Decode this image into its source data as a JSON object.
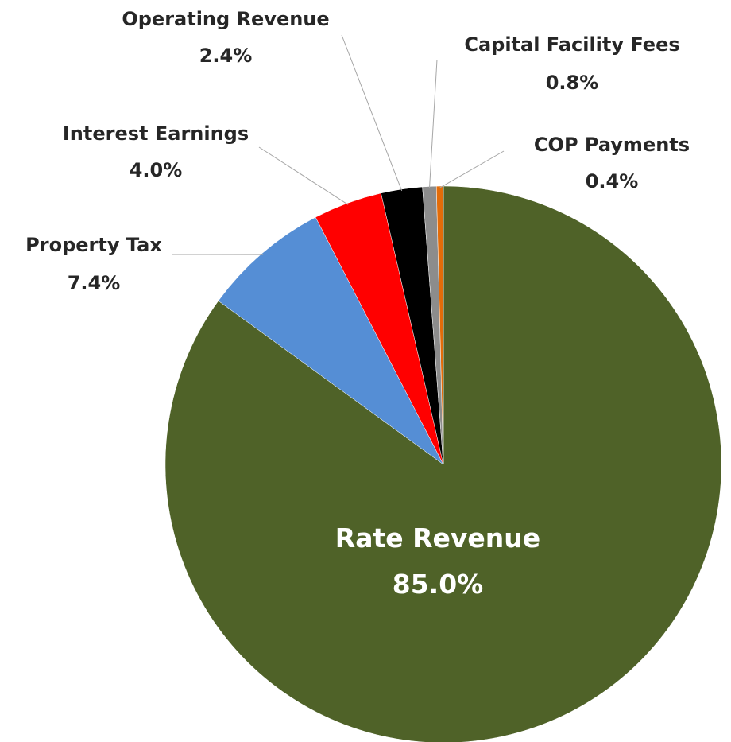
{
  "chart_data": {
    "type": "pie",
    "title": "",
    "start": "12 o'clock",
    "direction": "clockwise",
    "legend": "none",
    "slices": [
      {
        "label": "Rate Revenue",
        "value": 85.0,
        "display": "85.0%",
        "color": "#4f6228"
      },
      {
        "label": "Property Tax",
        "value": 7.4,
        "display": "7.4%",
        "color": "#558ed5"
      },
      {
        "label": "Interest Earnings",
        "value": 4.0,
        "display": "4.0%",
        "color": "#ff0000"
      },
      {
        "label": "Operating Revenue",
        "value": 2.4,
        "display": "2.4%",
        "color": "#000000"
      },
      {
        "label": "Capital Facility Fees",
        "value": 0.8,
        "display": "0.8%",
        "color": "#8c8c8c"
      },
      {
        "label": "COP Payments",
        "value": 0.4,
        "display": "0.4%",
        "color": "#e36c09"
      }
    ]
  }
}
